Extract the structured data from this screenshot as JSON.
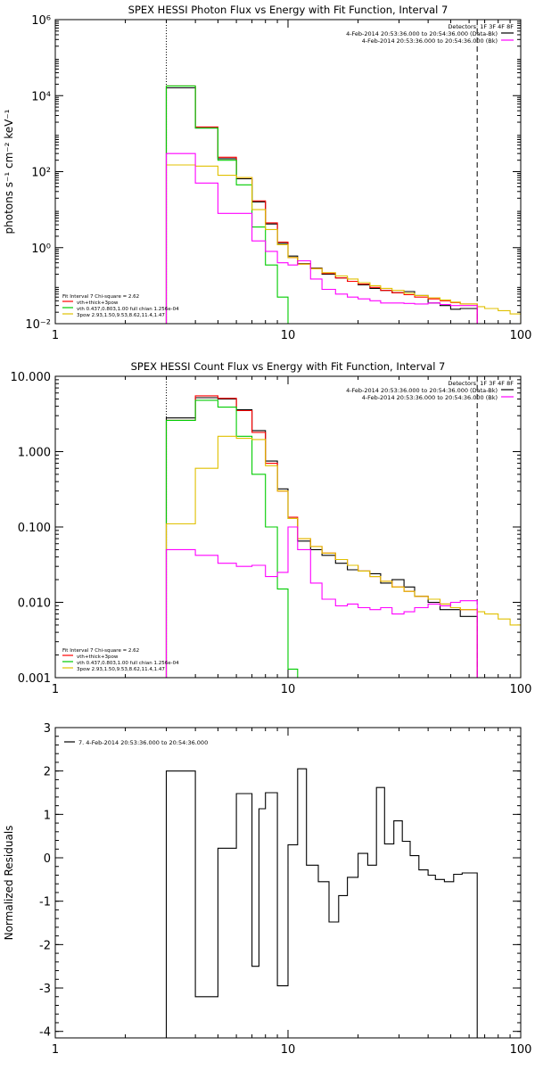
{
  "chart_data": [
    {
      "type": "line",
      "title": "SPEX HESSI Photon Flux vs Energy with Fit Function, Interval 7",
      "ylabel": "photons s⁻¹ cm⁻² keV⁻¹",
      "xlabel": "",
      "xscale": "log",
      "yscale": "log",
      "xlim": [
        1,
        100
      ],
      "ylim": [
        0.01,
        1000000
      ],
      "xticks": [
        {
          "v": 1,
          "label": "1"
        },
        {
          "v": 10,
          "label": "10"
        },
        {
          "v": 100,
          "label": "100"
        }
      ],
      "yticks": [
        {
          "v": 0.01,
          "label": "10⁻²"
        },
        {
          "v": 1,
          "label": "10⁰"
        },
        {
          "v": 100,
          "label": "10²"
        },
        {
          "v": 10000,
          "label": "10⁴"
        },
        {
          "v": 1000000,
          "label": "10⁶"
        }
      ],
      "vlines": [
        {
          "x": 3.0,
          "style": "dotted"
        },
        {
          "x": 65,
          "style": "dashed"
        }
      ],
      "legend_top": {
        "placement": "top-right",
        "lines": [
          {
            "text": "Detectors: 1F 3F 4F 8F",
            "color": ""
          },
          {
            "text": "4-Feb-2014 20:53:36.000 to 20:54:36.000 (Data-Bk)",
            "color": "#000000"
          },
          {
            "text": "4-Feb-2014 20:53:36.000 to 20:54:36.000 (Bk)",
            "color": "#ff00ff"
          }
        ]
      },
      "legend_bottom": {
        "placement": "bottom-left",
        "lines": [
          {
            "text": "Fit Interval  7   Chi-square = 2.62",
            "color": ""
          },
          {
            "text": "vth+thick+3pow",
            "color": "#ff0000"
          },
          {
            "text": "vth 0.437,0.803,1.00  full chian 1.256e-04",
            "color": "#00cc00"
          },
          {
            "text": "3pow 2.93,1.50,9.53,8.62,11.4,1.47",
            "color": "#e0c000"
          }
        ]
      },
      "series": [
        {
          "color": "#000000",
          "edges": [
            3.0,
            4.0,
            5.0,
            6.0,
            7.0,
            8.0,
            9.0,
            10.0,
            11.0,
            12.5,
            14.0,
            16.0,
            18.0,
            20.0,
            22.5,
            25.0,
            28.0,
            31.5,
            35.0,
            40.0,
            45.0,
            50.0,
            55.0,
            65.0
          ],
          "values": [
            16000,
            1400,
            220,
            65,
            16,
            4.2,
            1.3,
            0.6,
            0.38,
            0.29,
            0.2,
            0.16,
            0.13,
            0.105,
            0.085,
            0.075,
            0.065,
            0.07,
            0.055,
            0.035,
            0.03,
            0.024,
            0.025
          ]
        },
        {
          "color": "#ff0000",
          "edges": [
            3.0,
            4.0,
            5.0,
            6.0,
            7.0,
            8.0,
            9.0,
            10.0,
            11.0,
            12.5,
            14.0,
            16.0,
            18.0,
            20.0,
            22.5,
            25.0,
            28.0,
            31.5,
            35.0,
            40.0,
            45.0,
            50.0,
            55.0,
            65.0
          ],
          "values": [
            18000,
            1500,
            240,
            70,
            17,
            4.5,
            1.4,
            0.55,
            0.37,
            0.28,
            0.21,
            0.16,
            0.13,
            0.11,
            0.09,
            0.075,
            0.065,
            0.058,
            0.05,
            0.045,
            0.04,
            0.036,
            0.033
          ]
        },
        {
          "color": "#00cc00",
          "edges": [
            3.0,
            4.0,
            5.0,
            6.0,
            7.0,
            8.0,
            9.0,
            10.0
          ],
          "values": [
            18000,
            1400,
            200,
            45,
            3.5,
            0.35,
            0.05
          ]
        },
        {
          "color": "#e0c000",
          "edges": [
            3.0,
            4.0,
            5.0,
            6.0,
            7.0,
            8.0,
            9.0,
            10.0,
            11.0,
            12.5,
            14.0,
            16.0,
            18.0,
            20.0,
            22.5,
            25.0,
            28.0,
            31.5,
            35.0,
            40.0,
            45.0,
            50.0,
            55.0,
            65.0,
            70.0,
            80.0,
            90.0,
            100.0
          ],
          "values": [
            150,
            140,
            80,
            70,
            10,
            3,
            1.2,
            0.55,
            0.37,
            0.28,
            0.22,
            0.18,
            0.15,
            0.12,
            0.1,
            0.085,
            0.075,
            0.063,
            0.055,
            0.048,
            0.042,
            0.037,
            0.033,
            0.028,
            0.025,
            0.022,
            0.018
          ]
        },
        {
          "color": "#ff00ff",
          "edges": [
            3.0,
            4.0,
            5.0,
            6.0,
            7.0,
            8.0,
            9.0,
            10.0,
            11.0,
            12.5,
            14.0,
            16.0,
            18.0,
            20.0,
            22.5,
            25.0,
            28.0,
            31.5,
            35.0,
            40.0,
            45.0,
            50.0,
            55.0,
            65.0
          ],
          "values": [
            300,
            50,
            8,
            8,
            1.5,
            0.8,
            0.4,
            0.35,
            0.45,
            0.15,
            0.08,
            0.06,
            0.05,
            0.045,
            0.04,
            0.035,
            0.035,
            0.034,
            0.033,
            0.035,
            0.032,
            0.03,
            0.03
          ]
        }
      ]
    },
    {
      "type": "line",
      "title": "SPEX HESSI Count Flux vs Energy with Fit Function, Interval 7",
      "ylabel": "",
      "xlabel": "",
      "xscale": "log",
      "yscale": "log",
      "xlim": [
        1,
        100
      ],
      "ylim": [
        0.001,
        10
      ],
      "xticks": [
        {
          "v": 1,
          "label": "1"
        },
        {
          "v": 10,
          "label": "10"
        },
        {
          "v": 100,
          "label": "100"
        }
      ],
      "yticks": [
        {
          "v": 0.001,
          "label": "0.001"
        },
        {
          "v": 0.01,
          "label": "0.010"
        },
        {
          "v": 0.1,
          "label": "0.100"
        },
        {
          "v": 1,
          "label": "1.000"
        },
        {
          "v": 10,
          "label": "10.000"
        }
      ],
      "vlines": [
        {
          "x": 3.0,
          "style": "dotted"
        },
        {
          "x": 65,
          "style": "dashed"
        }
      ],
      "legend_top": {
        "placement": "top-right",
        "lines": [
          {
            "text": "Detectors: 1F 3F 4F 8F",
            "color": ""
          },
          {
            "text": "4-Feb-2014 20:53:36.000 to 20:54:36.000 (Data-Bk)",
            "color": "#000000"
          },
          {
            "text": "4-Feb-2014 20:53:36.000 to 20:54:36.000 (Bk)",
            "color": "#ff00ff"
          }
        ]
      },
      "legend_bottom": {
        "placement": "bottom-left",
        "lines": [
          {
            "text": "Fit Interval  7   Chi-square = 2.62",
            "color": ""
          },
          {
            "text": "vth+thick+3pow",
            "color": "#ff0000"
          },
          {
            "text": "vth 0.437,0.803,1.00  full chian 1.256e-04",
            "color": "#00cc00"
          },
          {
            "text": "3pow 2.93,1.50,9.53,8.62,11.4,1.47",
            "color": "#e0c000"
          }
        ]
      },
      "series": [
        {
          "color": "#000000",
          "edges": [
            3.0,
            4.0,
            5.0,
            6.0,
            7.0,
            8.0,
            9.0,
            10.0,
            11.0,
            12.5,
            14.0,
            16.0,
            18.0,
            20.0,
            22.5,
            25.0,
            28.0,
            31.5,
            35.0,
            40.0,
            45.0,
            50.0,
            55.0,
            65.0
          ],
          "values": [
            2.8,
            5.2,
            5.0,
            3.6,
            1.9,
            0.75,
            0.32,
            0.13,
            0.065,
            0.05,
            0.042,
            0.033,
            0.027,
            0.026,
            0.024,
            0.018,
            0.02,
            0.016,
            0.012,
            0.01,
            0.008,
            0.008,
            0.0065
          ]
        },
        {
          "color": "#ff0000",
          "edges": [
            3.0,
            4.0,
            5.0,
            6.0,
            7.0,
            8.0,
            9.0,
            10.0,
            11.0,
            12.5,
            14.0,
            16.0,
            18.0,
            20.0,
            22.5,
            25.0,
            28.0,
            31.5,
            35.0,
            40.0,
            45.0,
            50.0,
            55.0,
            65.0
          ],
          "values": [
            2.6,
            5.5,
            5.1,
            3.5,
            1.8,
            0.7,
            0.3,
            0.135,
            0.07,
            0.055,
            0.045,
            0.037,
            0.031,
            0.026,
            0.022,
            0.019,
            0.016,
            0.014,
            0.012,
            0.011,
            0.0095,
            0.0085,
            0.008
          ]
        },
        {
          "color": "#00cc00",
          "edges": [
            3.0,
            4.0,
            5.0,
            6.0,
            7.0,
            8.0,
            9.0,
            10.0,
            11.0
          ],
          "values": [
            2.6,
            4.8,
            3.9,
            1.6,
            0.5,
            0.1,
            0.015,
            0.0013
          ]
        },
        {
          "color": "#e0c000",
          "edges": [
            3.0,
            4.0,
            5.0,
            6.0,
            7.0,
            8.0,
            9.0,
            10.0,
            11.0,
            12.5,
            14.0,
            16.0,
            18.0,
            20.0,
            22.5,
            25.0,
            28.0,
            31.5,
            35.0,
            40.0,
            45.0,
            50.0,
            55.0,
            65.0,
            70.0,
            80.0,
            90.0,
            100.0
          ],
          "values": [
            0.11,
            0.6,
            1.6,
            1.5,
            1.45,
            0.65,
            0.3,
            0.13,
            0.07,
            0.055,
            0.045,
            0.037,
            0.031,
            0.026,
            0.022,
            0.019,
            0.016,
            0.014,
            0.012,
            0.011,
            0.0095,
            0.0085,
            0.008,
            0.0075,
            0.007,
            0.006,
            0.005
          ]
        },
        {
          "color": "#ff00ff",
          "edges": [
            3.0,
            4.0,
            5.0,
            6.0,
            7.0,
            8.0,
            9.0,
            10.0,
            11.0,
            12.5,
            14.0,
            16.0,
            18.0,
            20.0,
            22.5,
            25.0,
            28.0,
            31.5,
            35.0,
            40.0,
            45.0,
            50.0,
            55.0,
            65.0
          ],
          "values": [
            0.05,
            0.042,
            0.033,
            0.03,
            0.031,
            0.022,
            0.025,
            0.1,
            0.05,
            0.018,
            0.011,
            0.009,
            0.0095,
            0.0085,
            0.008,
            0.0085,
            0.007,
            0.0075,
            0.0085,
            0.0095,
            0.009,
            0.01,
            0.0105
          ]
        }
      ]
    },
    {
      "type": "line",
      "title": "",
      "ylabel": "Normalized Residuals",
      "xlabel": "",
      "xscale": "log",
      "yscale": "linear",
      "xlim": [
        1,
        100
      ],
      "ylim": [
        -4.15,
        3.0
      ],
      "xticks": [
        {
          "v": 1,
          "label": "1"
        },
        {
          "v": 10,
          "label": "10"
        },
        {
          "v": 100,
          "label": "100"
        }
      ],
      "yticks": [
        {
          "v": -4,
          "label": "-4"
        },
        {
          "v": -3,
          "label": "-3"
        },
        {
          "v": -2,
          "label": "-2"
        },
        {
          "v": -1,
          "label": "-1"
        },
        {
          "v": 0,
          "label": "0"
        },
        {
          "v": 1,
          "label": "1"
        },
        {
          "v": 2,
          "label": "2"
        },
        {
          "v": 3,
          "label": "3"
        }
      ],
      "vlines": [],
      "legend_top": {
        "placement": "top-left",
        "lines": [
          {
            "text": "7.  4-Feb-2014 20:53:36.000 to 20:54:36.000",
            "color": "#000000"
          }
        ]
      },
      "legend_bottom": {
        "placement": "bottom-left",
        "lines": []
      },
      "series": [
        {
          "color": "#000000",
          "drop_ends_to": -4.15,
          "edges": [
            3.0,
            4.0,
            5.0,
            6.0,
            7.0,
            7.5,
            8.0,
            9.0,
            10.0,
            11.0,
            12.0,
            13.5,
            15.0,
            16.5,
            18.0,
            20.0,
            22.0,
            24.0,
            26.0,
            28.5,
            31.0,
            33.5,
            36.5,
            40.0,
            43.0,
            47.0,
            51.5,
            56.0,
            61.0,
            65.0
          ],
          "values": [
            2.0,
            -3.2,
            0.22,
            1.48,
            -2.5,
            1.13,
            1.5,
            -2.95,
            0.3,
            2.05,
            -0.17,
            -0.55,
            -1.48,
            -0.87,
            -0.45,
            0.1,
            -0.17,
            1.62,
            0.32,
            0.85,
            0.38,
            0.05,
            -0.28,
            -0.4,
            -0.5,
            -0.55,
            -0.38,
            -0.35,
            -0.35
          ]
        }
      ]
    }
  ]
}
